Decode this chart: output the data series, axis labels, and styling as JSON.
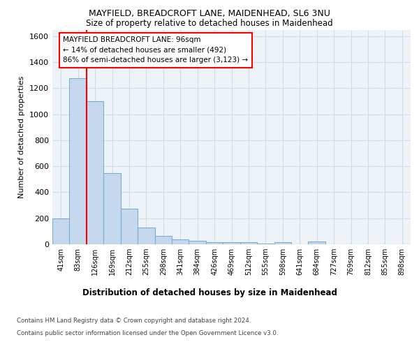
{
  "title": "MAYFIELD, BREADCROFT LANE, MAIDENHEAD, SL6 3NU",
  "subtitle": "Size of property relative to detached houses in Maidenhead",
  "xlabel": "Distribution of detached houses by size in Maidenhead",
  "ylabel": "Number of detached properties",
  "footer1": "Contains HM Land Registry data © Crown copyright and database right 2024.",
  "footer2": "Contains public sector information licensed under the Open Government Licence v3.0.",
  "categories": [
    "41sqm",
    "83sqm",
    "126sqm",
    "169sqm",
    "212sqm",
    "255sqm",
    "298sqm",
    "341sqm",
    "384sqm",
    "426sqm",
    "469sqm",
    "512sqm",
    "555sqm",
    "598sqm",
    "641sqm",
    "684sqm",
    "727sqm",
    "769sqm",
    "812sqm",
    "855sqm",
    "898sqm"
  ],
  "bar_values": [
    200,
    1275,
    1100,
    550,
    275,
    130,
    65,
    35,
    25,
    15,
    15,
    15,
    5,
    15,
    0,
    20,
    0,
    0,
    0,
    0,
    0
  ],
  "bar_color": "#c5d8ee",
  "bar_edge_color": "#7aafd4",
  "grid_color": "#d0dde8",
  "background_color": "#ffffff",
  "axes_bg_color": "#eef3f8",
  "red_line_x": 1.5,
  "annotation_text1": "MAYFIELD BREADCROFT LANE: 96sqm",
  "annotation_text2": "← 14% of detached houses are smaller (492)",
  "annotation_text3": "86% of semi-detached houses are larger (3,123) →",
  "ylim": [
    0,
    1650
  ],
  "yticks": [
    0,
    200,
    400,
    600,
    800,
    1000,
    1200,
    1400,
    1600
  ]
}
